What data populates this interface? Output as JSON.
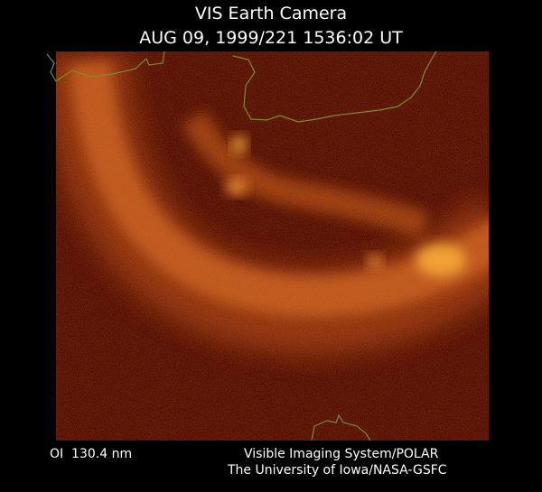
{
  "header": {
    "title": "VIS Earth Camera",
    "timestamp": "AUG 09, 1999/221 1536:02 UT"
  },
  "footer": {
    "filter": "OI  130.4 nm",
    "credit_line1": "Visible Imaging System/POLAR",
    "credit_line2": "The University of Iowa/NASA-GSFC"
  }
}
